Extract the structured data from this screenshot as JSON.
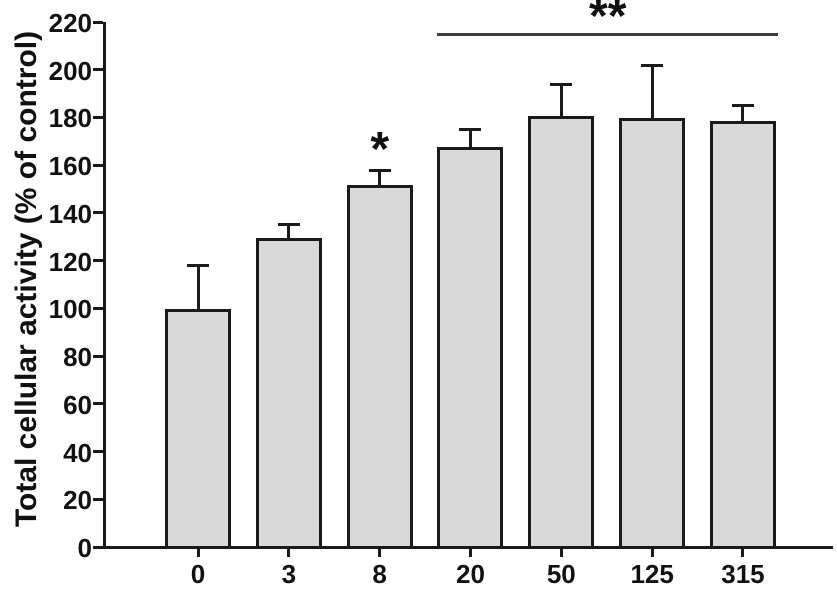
{
  "chart_data": {
    "type": "bar",
    "title": "",
    "ylabel": "Total cellular activity (% of control)",
    "xlabel": "",
    "categories": [
      "0",
      "3",
      "8",
      "20",
      "50",
      "125",
      "315"
    ],
    "values": [
      100,
      130,
      152,
      168,
      181,
      180,
      179
    ],
    "errors_plus": [
      19,
      6,
      7,
      8,
      14,
      23,
      7
    ],
    "ylim": [
      0,
      220
    ],
    "ytick_step": 20,
    "yticks": [
      0,
      20,
      40,
      60,
      80,
      100,
      120,
      140,
      160,
      180,
      200,
      220
    ],
    "grid": false,
    "legend": null,
    "bar_fill": "#d9d9d9",
    "bar_border": "#1a1a1a",
    "significance_line_color": "#3c3c3c",
    "annotations": {
      "single_star": {
        "text": "*",
        "category_index": 2
      },
      "double_star": {
        "text": "**",
        "from_category_index": 3,
        "to_category_index": 6
      }
    }
  }
}
